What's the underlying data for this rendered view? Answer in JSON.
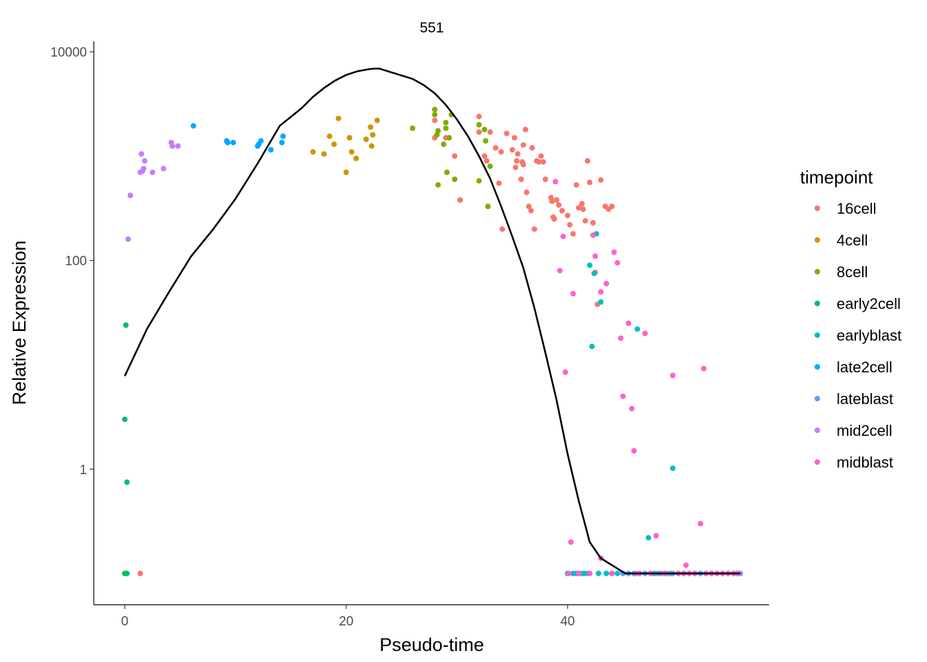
{
  "chart_data": {
    "type": "scatter",
    "title": "551",
    "xlabel": "Pseudo-time",
    "ylabel": "Relative Expression",
    "xlim": [
      -2.8,
      58.2
    ],
    "ylim_log10": [
      -1.3,
      4.1
    ],
    "y_scale": "log10",
    "x_ticks": [
      0,
      20,
      40
    ],
    "y_ticks": [
      1,
      100,
      10000
    ],
    "grid": false,
    "legend": {
      "title": "timepoint",
      "placement": "right"
    },
    "colors": {
      "16cell": "#F8766D",
      "4cell": "#CD9600",
      "8cell": "#7CAE00",
      "early2cell": "#00BE67",
      "earlyblast": "#00BFC4",
      "late2cell": "#00A9FF",
      "lateblast": "#619CFF",
      "mid2cell": "#C77CFF",
      "midblast": "#FF61CC"
    },
    "series": [
      {
        "name": "16cell",
        "points": [
          [
            1.4,
            0.1
          ],
          [
            28,
            2200
          ],
          [
            28,
            1500
          ],
          [
            29,
            1500
          ],
          [
            29.8,
            1000
          ],
          [
            30.3,
            380
          ],
          [
            32,
            2400
          ],
          [
            32,
            1700
          ],
          [
            32.5,
            1000
          ],
          [
            32.7,
            900
          ],
          [
            33,
            1700
          ],
          [
            33.5,
            1200
          ],
          [
            33.8,
            550
          ],
          [
            34,
            1100
          ],
          [
            34.1,
            200
          ],
          [
            34.5,
            1650
          ],
          [
            35,
            1150
          ],
          [
            35.2,
            1500
          ],
          [
            35.3,
            780
          ],
          [
            35.4,
            900
          ],
          [
            35.5,
            1050
          ],
          [
            35.8,
            600
          ],
          [
            35.9,
            880
          ],
          [
            36,
            830
          ],
          [
            36,
            1280
          ],
          [
            36.2,
            1800
          ],
          [
            36.3,
            450
          ],
          [
            36.5,
            330
          ],
          [
            36.7,
            300
          ],
          [
            36.8,
            1200
          ],
          [
            37,
            200
          ],
          [
            37.2,
            900
          ],
          [
            37.4,
            880
          ],
          [
            37.6,
            1000
          ],
          [
            37.8,
            880
          ],
          [
            38,
            600
          ],
          [
            38.5,
            400
          ],
          [
            38.6,
            370
          ],
          [
            38.7,
            260
          ],
          [
            38.8,
            250
          ],
          [
            39,
            380
          ],
          [
            39.2,
            340
          ],
          [
            39.5,
            300
          ],
          [
            40,
            270
          ],
          [
            40.2,
            220
          ],
          [
            40.5,
            180
          ],
          [
            40.8,
            530
          ],
          [
            41,
            320
          ],
          [
            41.3,
            350
          ],
          [
            41.4,
            310
          ],
          [
            41.6,
            240
          ],
          [
            41.8,
            900
          ],
          [
            42,
            560
          ],
          [
            42.3,
            230
          ],
          [
            42.5,
            77
          ],
          [
            42.7,
            38
          ],
          [
            43,
            590
          ],
          [
            43.4,
            330
          ],
          [
            43.7,
            310
          ],
          [
            44,
            330
          ]
        ]
      },
      {
        "name": "4cell",
        "points": [
          [
            17,
            1100
          ],
          [
            18,
            1050
          ],
          [
            18.5,
            1550
          ],
          [
            18.9,
            1300
          ],
          [
            19.3,
            2300
          ],
          [
            20,
            700
          ],
          [
            20.3,
            1500
          ],
          [
            20.5,
            1100
          ],
          [
            20.9,
            950
          ],
          [
            21.8,
            1450
          ],
          [
            22.2,
            1900
          ],
          [
            22.3,
            1250
          ],
          [
            22.4,
            1600
          ],
          [
            22.8,
            2200
          ]
        ]
      },
      {
        "name": "8cell",
        "points": [
          [
            26,
            1850
          ],
          [
            28,
            2800
          ],
          [
            28,
            2500
          ],
          [
            28.2,
            1600
          ],
          [
            28.3,
            1750
          ],
          [
            28.3,
            530
          ],
          [
            28.8,
            1300
          ],
          [
            29,
            1850
          ],
          [
            29,
            2100
          ],
          [
            29.1,
            700
          ],
          [
            29.3,
            1500
          ],
          [
            29.5,
            2500
          ],
          [
            29.8,
            600
          ],
          [
            32,
            2000
          ],
          [
            32,
            580
          ],
          [
            32.5,
            1800
          ],
          [
            32.6,
            1400
          ],
          [
            32.8,
            330
          ],
          [
            33,
            800
          ]
        ]
      },
      {
        "name": "early2cell",
        "points": [
          [
            0,
            0.1
          ],
          [
            0,
            3
          ],
          [
            0.1,
            0.1
          ],
          [
            0.1,
            24
          ],
          [
            0.2,
            0.75
          ],
          [
            0.2,
            0.1
          ]
        ]
      },
      {
        "name": "earlyblast",
        "points": [
          [
            40,
            0.1
          ],
          [
            40.5,
            0.1
          ],
          [
            40.8,
            0.1
          ],
          [
            41,
            0.1
          ],
          [
            41.3,
            0.1
          ],
          [
            41.5,
            0.1
          ],
          [
            41.8,
            0.1
          ],
          [
            42,
            90
          ],
          [
            42,
            0.1
          ],
          [
            42.2,
            15
          ],
          [
            42.4,
            75
          ],
          [
            42.6,
            180
          ],
          [
            42.8,
            0.1
          ],
          [
            43,
            40
          ],
          [
            43.5,
            0.1
          ],
          [
            44,
            0.1
          ],
          [
            44.5,
            0.1
          ],
          [
            45,
            0.1
          ],
          [
            45.5,
            0.1
          ],
          [
            46,
            0.1
          ],
          [
            46.3,
            22
          ],
          [
            46.5,
            0.1
          ],
          [
            47,
            0.1
          ],
          [
            47.3,
            0.22
          ],
          [
            47.8,
            0.1
          ],
          [
            48.3,
            0.1
          ],
          [
            48.8,
            0.1
          ],
          [
            49.3,
            0.1
          ],
          [
            49.5,
            1.02
          ],
          [
            50,
            0.1
          ],
          [
            50.5,
            0.1
          ],
          [
            51,
            0.1
          ],
          [
            51.5,
            0.1
          ],
          [
            52,
            0.1
          ],
          [
            52.5,
            0.1
          ],
          [
            53,
            0.1
          ],
          [
            53.5,
            0.1
          ],
          [
            54,
            0.1
          ],
          [
            54.5,
            0.1
          ],
          [
            55,
            0.1
          ],
          [
            55.5,
            0.1
          ]
        ]
      },
      {
        "name": "late2cell",
        "points": [
          [
            6.2,
            1950
          ],
          [
            9.2,
            1400
          ],
          [
            9.3,
            1350
          ],
          [
            9.8,
            1350
          ],
          [
            12,
            1250
          ],
          [
            12.1,
            1300
          ],
          [
            12.3,
            1400
          ],
          [
            13.2,
            1150
          ],
          [
            14.2,
            1350
          ],
          [
            14.3,
            1550
          ]
        ]
      },
      {
        "name": "lateblast",
        "points": [
          [
            44,
            0.1
          ],
          [
            45,
            0.1
          ],
          [
            45.5,
            0.1
          ],
          [
            46,
            0.1
          ],
          [
            46.5,
            0.1
          ],
          [
            47,
            0.1
          ],
          [
            47.5,
            0.1
          ],
          [
            48,
            0.1
          ],
          [
            48.5,
            0.1
          ],
          [
            49,
            0.1
          ],
          [
            49.5,
            0.1
          ],
          [
            50,
            0.1
          ],
          [
            50.5,
            0.1
          ],
          [
            51,
            0.1
          ],
          [
            51.5,
            0.1
          ],
          [
            52,
            0.1
          ],
          [
            52.5,
            0.1
          ],
          [
            53,
            0.1
          ],
          [
            53.5,
            0.1
          ],
          [
            54,
            0.1
          ],
          [
            54.5,
            0.1
          ],
          [
            55,
            0.1
          ],
          [
            55.3,
            0.1
          ],
          [
            55.6,
            0.1
          ]
        ]
      },
      {
        "name": "mid2cell",
        "points": [
          [
            0.3,
            160
          ],
          [
            0.5,
            420
          ],
          [
            1.4,
            700
          ],
          [
            1.5,
            1050
          ],
          [
            1.6,
            720
          ],
          [
            1.7,
            760
          ],
          [
            1.8,
            900
          ],
          [
            2.5,
            700
          ],
          [
            3.5,
            760
          ],
          [
            4.2,
            1350
          ],
          [
            4.3,
            1250
          ],
          [
            4.8,
            1250
          ]
        ]
      },
      {
        "name": "midblast",
        "points": [
          [
            38.9,
            570
          ],
          [
            39.3,
            80
          ],
          [
            39.6,
            170
          ],
          [
            39.8,
            8.5
          ],
          [
            40.1,
            0.1
          ],
          [
            40.3,
            0.2
          ],
          [
            40.5,
            48
          ],
          [
            41,
            0.1
          ],
          [
            42,
            0.1
          ],
          [
            42.3,
            175
          ],
          [
            42.5,
            110
          ],
          [
            43,
            50
          ],
          [
            43,
            0.14
          ],
          [
            43.5,
            60
          ],
          [
            44,
            0.1
          ],
          [
            44.2,
            120
          ],
          [
            44.5,
            95
          ],
          [
            44.8,
            18
          ],
          [
            45,
            5
          ],
          [
            45.5,
            25
          ],
          [
            45.8,
            3.8
          ],
          [
            46,
            1.5
          ],
          [
            46.2,
            0.1
          ],
          [
            46.5,
            0.1
          ],
          [
            47,
            20
          ],
          [
            47.5,
            0.1
          ],
          [
            48,
            0.23
          ],
          [
            48.5,
            0.1
          ],
          [
            49,
            0.1
          ],
          [
            49.5,
            7.9
          ],
          [
            50,
            0.1
          ],
          [
            50.5,
            0.1
          ],
          [
            50.7,
            0.12
          ],
          [
            51,
            0.1
          ],
          [
            51.5,
            0.1
          ],
          [
            52,
            0.3
          ],
          [
            52.3,
            9.2
          ],
          [
            52.5,
            0.1
          ],
          [
            53,
            0.1
          ],
          [
            53.5,
            0.1
          ],
          [
            54,
            0.1
          ],
          [
            54.5,
            0.1
          ],
          [
            55,
            0.1
          ],
          [
            55.4,
            0.1
          ]
        ]
      }
    ],
    "fitted_curve": [
      [
        0,
        7.8
      ],
      [
        2,
        22
      ],
      [
        4,
        50
      ],
      [
        6,
        110
      ],
      [
        8,
        200
      ],
      [
        10,
        390
      ],
      [
        12,
        850
      ],
      [
        14,
        1950
      ],
      [
        16,
        2900
      ],
      [
        17,
        3700
      ],
      [
        18,
        4500
      ],
      [
        19,
        5300
      ],
      [
        20,
        6000
      ],
      [
        21,
        6500
      ],
      [
        22,
        6800
      ],
      [
        22.5,
        6900
      ],
      [
        23,
        6900
      ],
      [
        26,
        5500
      ],
      [
        27,
        4800
      ],
      [
        28,
        4000
      ],
      [
        29,
        3100
      ],
      [
        30,
        2250
      ],
      [
        31,
        1550
      ],
      [
        32,
        1000
      ],
      [
        33,
        610
      ],
      [
        34,
        330
      ],
      [
        35,
        170
      ],
      [
        36,
        85
      ],
      [
        37,
        35
      ],
      [
        38,
        13
      ],
      [
        39,
        4.6
      ],
      [
        40,
        1.4
      ],
      [
        41,
        0.5
      ],
      [
        42,
        0.2
      ],
      [
        43,
        0.14
      ],
      [
        45.2,
        0.1
      ],
      [
        55.6,
        0.1
      ]
    ]
  }
}
